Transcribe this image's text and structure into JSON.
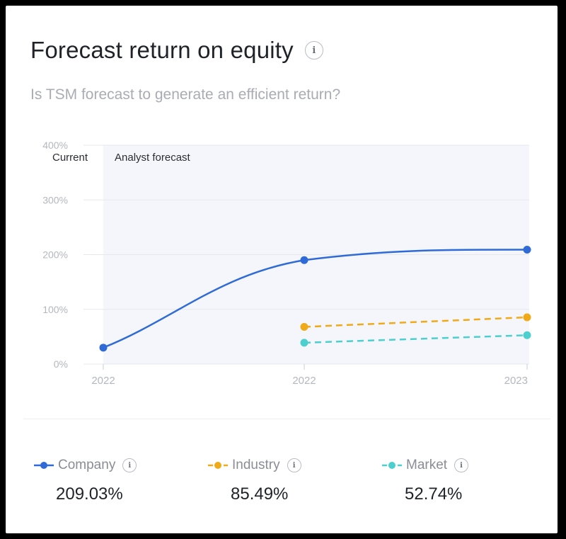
{
  "header": {
    "title": "Forecast return on equity",
    "subtitle": "Is TSM forecast to generate an efficient return?"
  },
  "icons": {
    "info": "i"
  },
  "chart_data": {
    "type": "line",
    "y_ticks": [
      "400%",
      "300%",
      "200%",
      "100%",
      "0%"
    ],
    "y_tick_values": [
      400,
      300,
      200,
      100,
      0
    ],
    "ylim": [
      0,
      400
    ],
    "x_ticks": [
      "2022",
      "2022",
      "2023"
    ],
    "region_labels": {
      "current": "Current",
      "forecast": "Analyst forecast"
    },
    "series": [
      {
        "name": "Company",
        "color": "#2f6bd6",
        "dashed": false,
        "points": [
          [
            0,
            30
          ],
          [
            1,
            190
          ],
          [
            2,
            209.03
          ]
        ]
      },
      {
        "name": "Industry",
        "color": "#f0aa18",
        "dashed": true,
        "points": [
          [
            1,
            68
          ],
          [
            2,
            85.49
          ]
        ]
      },
      {
        "name": "Market",
        "color": "#4ccfcf",
        "dashed": true,
        "points": [
          [
            1,
            39
          ],
          [
            2,
            52.74
          ]
        ]
      }
    ],
    "grid": true
  },
  "legend": [
    {
      "label": "Company",
      "value": "209.03%",
      "color": "#2f6bd6"
    },
    {
      "label": "Industry",
      "value": "85.49%",
      "color": "#f0aa18"
    },
    {
      "label": "Market",
      "value": "52.74%",
      "color": "#4ccfcf"
    }
  ]
}
